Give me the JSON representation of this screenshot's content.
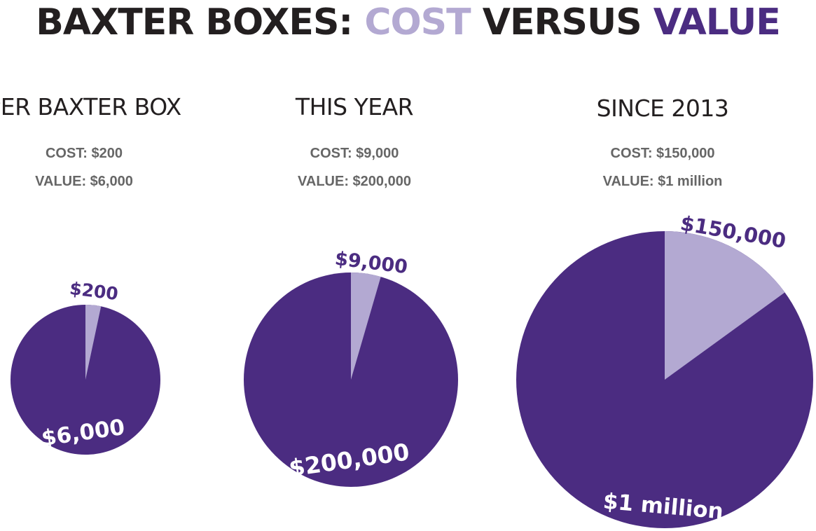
{
  "title": {
    "prefix": "BAXTER BOXES: ",
    "cost_word": "COST",
    "middle": " VERSUS ",
    "value_word": "VALUE"
  },
  "colors": {
    "cost": "#b3a9d2",
    "value": "#4b2c81",
    "title_text": "#231f20",
    "stat_text": "#666666"
  },
  "chart_data": [
    {
      "type": "pie",
      "title": "PER BAXTER BOX",
      "cost_text": "COST: $200",
      "value_text": "VALUE: $6,000",
      "values": [
        200,
        6000
      ],
      "labels": [
        "$200",
        "$6,000"
      ]
    },
    {
      "type": "pie",
      "title": "THIS YEAR",
      "cost_text": "COST: $9,000",
      "value_text": "VALUE: $200,000",
      "values": [
        9000,
        200000
      ],
      "labels": [
        "$9,000",
        "$200,000"
      ]
    },
    {
      "type": "pie",
      "title": "SINCE 2013",
      "cost_text": "COST: $150,000",
      "value_text": "VALUE: $1 million",
      "values": [
        150000,
        1000000
      ],
      "labels": [
        "$150,000",
        "$1 million"
      ]
    }
  ]
}
